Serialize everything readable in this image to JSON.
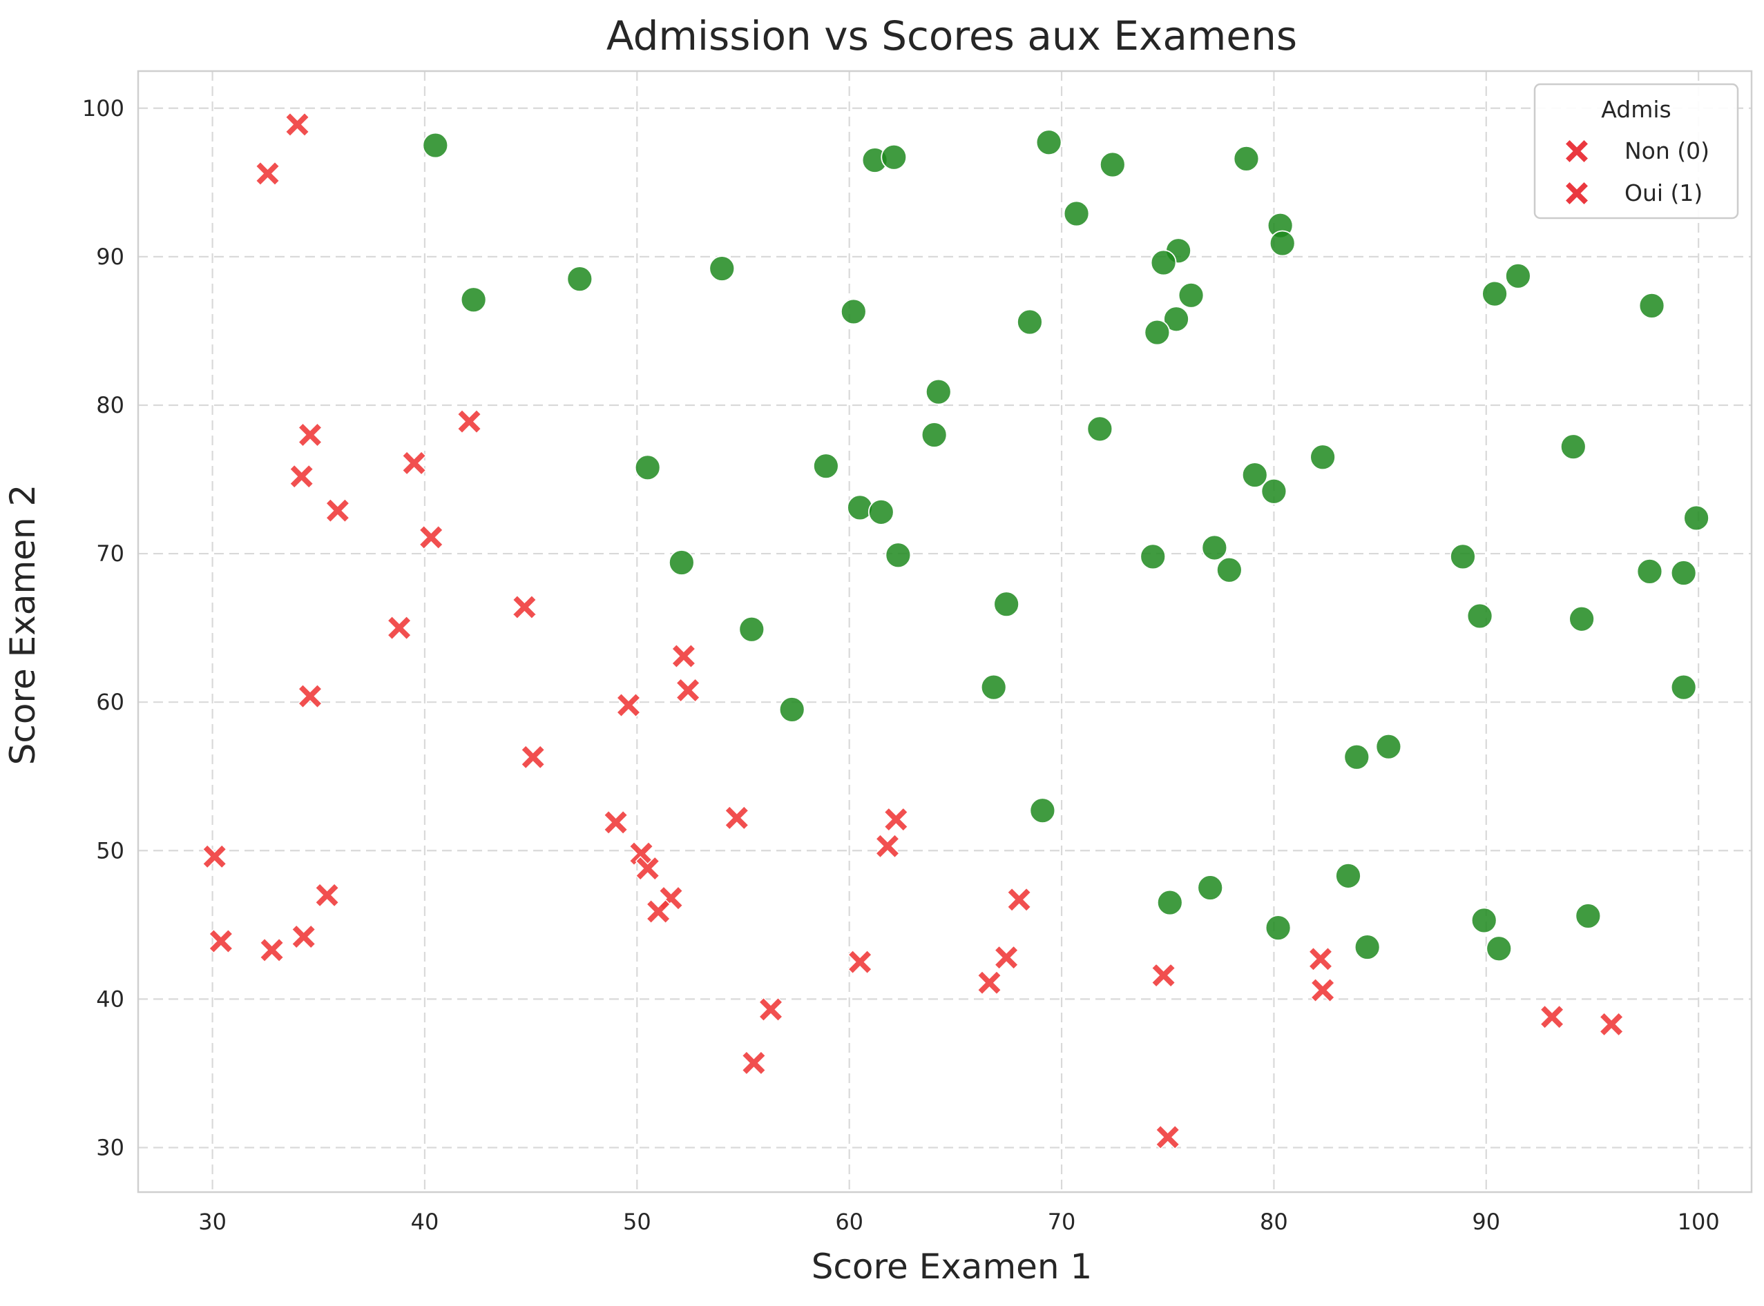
{
  "chart_data": {
    "type": "scatter",
    "title": "Admission vs Scores aux Examens",
    "xlabel": "Score Examen 1",
    "ylabel": "Score Examen 2",
    "xlim": [
      26.5,
      102.5
    ],
    "ylim": [
      27,
      102.5
    ],
    "xticks": [
      30,
      40,
      50,
      60,
      70,
      80,
      90,
      100
    ],
    "yticks": [
      30,
      40,
      50,
      60,
      70,
      80,
      90,
      100
    ],
    "grid": true,
    "legend": {
      "title": "Admis",
      "placement": "top-right",
      "entries": [
        {
          "label": "Non (0)",
          "marker": "x",
          "color": "#e8222a"
        },
        {
          "label": "Oui (1)",
          "marker": "x",
          "color": "#e8222a"
        }
      ]
    },
    "colors": {
      "admitted": "#1f8a1f",
      "rejected": "#f03c3c"
    },
    "series": [
      {
        "marker": "x",
        "color": "#f03c3c",
        "points": [
          [
            34.0,
            98.9
          ],
          [
            32.6,
            95.6
          ],
          [
            42.1,
            78.9
          ],
          [
            34.6,
            78.0
          ],
          [
            39.5,
            76.1
          ],
          [
            34.2,
            75.2
          ],
          [
            35.9,
            72.9
          ],
          [
            40.3,
            71.1
          ],
          [
            44.7,
            66.4
          ],
          [
            38.8,
            65.0
          ],
          [
            52.2,
            63.1
          ],
          [
            52.4,
            60.8
          ],
          [
            34.6,
            60.4
          ],
          [
            49.6,
            59.8
          ],
          [
            45.1,
            56.3
          ],
          [
            49.0,
            51.9
          ],
          [
            54.7,
            52.2
          ],
          [
            62.2,
            52.1
          ],
          [
            61.8,
            50.3
          ],
          [
            50.2,
            49.8
          ],
          [
            50.5,
            48.8
          ],
          [
            51.6,
            46.8
          ],
          [
            51.0,
            45.9
          ],
          [
            30.1,
            49.6
          ],
          [
            35.4,
            47.0
          ],
          [
            30.4,
            43.9
          ],
          [
            32.8,
            43.3
          ],
          [
            34.3,
            44.2
          ],
          [
            60.5,
            42.5
          ],
          [
            56.3,
            39.3
          ],
          [
            55.5,
            35.7
          ],
          [
            67.4,
            42.8
          ],
          [
            66.6,
            41.1
          ],
          [
            68.0,
            46.7
          ],
          [
            74.8,
            41.6
          ],
          [
            75.0,
            30.7
          ],
          [
            82.2,
            42.7
          ],
          [
            82.3,
            40.6
          ],
          [
            93.1,
            38.8
          ],
          [
            95.9,
            38.3
          ]
        ]
      },
      {
        "marker": "o",
        "color": "#1f8a1f",
        "points": [
          [
            40.5,
            97.5
          ],
          [
            61.2,
            96.5
          ],
          [
            62.1,
            96.7
          ],
          [
            69.4,
            97.7
          ],
          [
            72.4,
            96.2
          ],
          [
            78.7,
            96.6
          ],
          [
            70.7,
            92.9
          ],
          [
            80.3,
            92.1
          ],
          [
            80.4,
            90.9
          ],
          [
            75.5,
            90.4
          ],
          [
            74.8,
            89.6
          ],
          [
            54.0,
            89.2
          ],
          [
            47.3,
            88.5
          ],
          [
            42.3,
            87.1
          ],
          [
            60.2,
            86.3
          ],
          [
            68.5,
            85.6
          ],
          [
            75.4,
            85.8
          ],
          [
            76.1,
            87.4
          ],
          [
            74.5,
            84.9
          ],
          [
            90.4,
            87.5
          ],
          [
            91.5,
            88.7
          ],
          [
            97.8,
            86.7
          ],
          [
            64.2,
            80.9
          ],
          [
            64.0,
            78.0
          ],
          [
            71.8,
            78.4
          ],
          [
            50.5,
            75.8
          ],
          [
            58.9,
            75.9
          ],
          [
            79.1,
            75.3
          ],
          [
            82.3,
            76.5
          ],
          [
            94.1,
            77.2
          ],
          [
            60.5,
            73.1
          ],
          [
            61.5,
            72.8
          ],
          [
            80.0,
            74.2
          ],
          [
            99.9,
            72.4
          ],
          [
            52.1,
            69.4
          ],
          [
            62.3,
            69.9
          ],
          [
            74.3,
            69.8
          ],
          [
            77.2,
            70.4
          ],
          [
            77.9,
            68.9
          ],
          [
            88.9,
            69.8
          ],
          [
            97.7,
            68.8
          ],
          [
            99.3,
            68.7
          ],
          [
            67.4,
            66.6
          ],
          [
            55.4,
            64.9
          ],
          [
            89.7,
            65.8
          ],
          [
            94.5,
            65.6
          ],
          [
            66.8,
            61.0
          ],
          [
            57.3,
            59.5
          ],
          [
            99.3,
            61.0
          ],
          [
            83.9,
            56.3
          ],
          [
            85.4,
            57.0
          ],
          [
            69.1,
            52.7
          ],
          [
            83.5,
            48.3
          ],
          [
            75.1,
            46.5
          ],
          [
            77.0,
            47.5
          ],
          [
            80.2,
            44.8
          ],
          [
            84.4,
            43.5
          ],
          [
            89.9,
            45.3
          ],
          [
            90.6,
            43.4
          ],
          [
            94.8,
            45.6
          ]
        ]
      }
    ]
  }
}
